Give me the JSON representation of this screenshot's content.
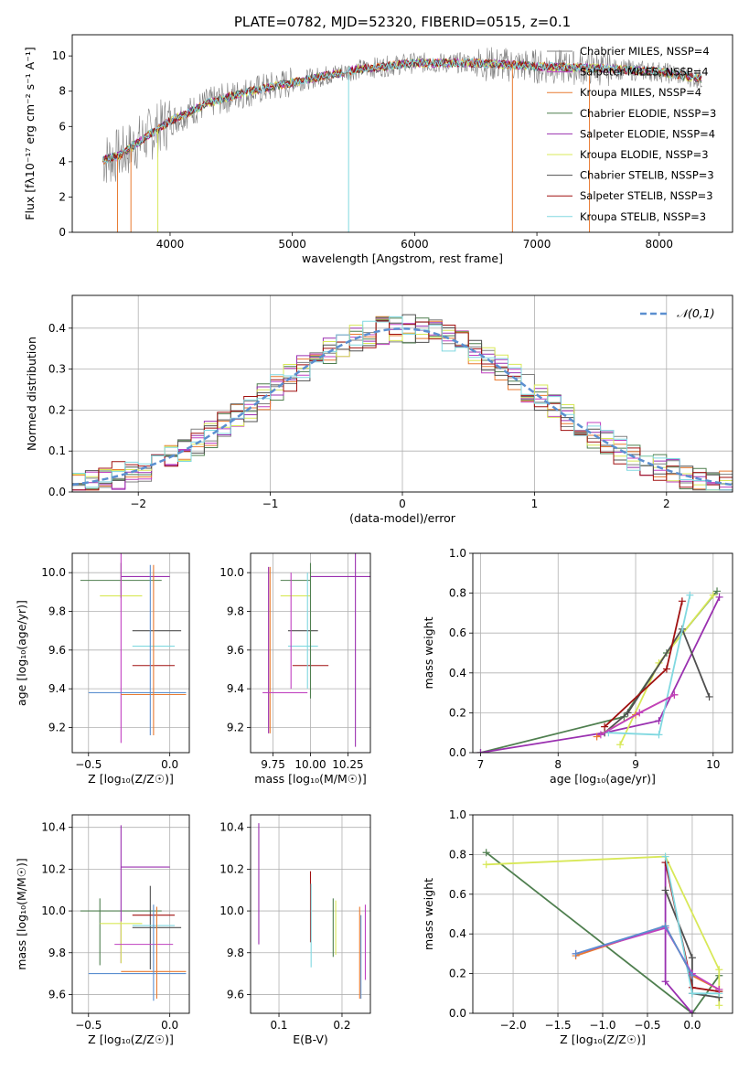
{
  "page_title": "PLATE=0782, MJD=52320, FIBERID=0515, z=0.1",
  "colors": {
    "chabrier_miles": "#808080",
    "salpeter_miles": "#c040c0",
    "kroupa_miles": "#e87a30",
    "chabrier_elodie": "#4f7f4f",
    "salpeter_elodie": "#9a30b0",
    "kroupa_elodie": "#d8e858",
    "chabrier_stelib": "#505050",
    "salpeter_stelib": "#a01010",
    "kroupa_stelib": "#80d8e0",
    "normal": "#5b8fd0"
  },
  "chart_data": [
    {
      "id": "spectrum",
      "type": "line",
      "xlabel": "wavelength [Angstrom, rest frame]",
      "ylabel": "Flux [fλ10⁻¹⁷ erg cm⁻² s⁻¹ A⁻¹]",
      "xlim": [
        3200,
        8600
      ],
      "ylim": [
        0,
        11.2
      ],
      "xticks": [
        4000,
        5000,
        6000,
        7000,
        8000
      ],
      "yticks": [
        0,
        2,
        4,
        6,
        8,
        10
      ],
      "grid": false,
      "legend_position": "right",
      "legend": [
        "Chabrier MILES, NSSP=4",
        "Salpeter MILES, NSSP=4",
        "Kroupa MILES, NSSP=4",
        "Chabrier ELODIE, NSSP=3",
        "Salpeter ELODIE, NSSP=4",
        "Kroupa ELODIE, NSSP=3",
        "Chabrier STELIB, NSSP=3",
        "Salpeter STELIB, NSSP=3",
        "Kroupa STELIB, NSSP=3"
      ],
      "continuum": {
        "x": [
          3450,
          3600,
          3800,
          4000,
          4300,
          4600,
          5000,
          5500,
          6000,
          6500,
          7000,
          7500,
          8000,
          8350
        ],
        "y": [
          4.1,
          4.4,
          5.4,
          6.3,
          7.3,
          7.9,
          8.5,
          9.2,
          9.6,
          9.6,
          9.4,
          9.3,
          9.1,
          8.7
        ]
      }
    },
    {
      "id": "residuals",
      "type": "line",
      "xlabel": "(data-model)/error",
      "ylabel": "Normed distribution",
      "xlim": [
        -2.5,
        2.5
      ],
      "ylim": [
        0,
        0.48
      ],
      "xticks": [
        -2,
        -1,
        0,
        1,
        2
      ],
      "yticks": [
        0.0,
        0.1,
        0.2,
        0.3,
        0.4
      ],
      "grid": true,
      "legend_position": "top-right",
      "legend": [
        "𝒩(0,1)"
      ]
    },
    {
      "id": "z-age",
      "type": "scatter",
      "xlabel": "Z [log₁₀(Z/Z☉)]",
      "ylabel": "age  [log₁₀(age/yr)]",
      "xlim": [
        -0.6,
        0.12
      ],
      "ylim": [
        9.07,
        10.1
      ],
      "xticks": [
        -0.5,
        0.0
      ],
      "yticks": [
        9.2,
        9.4,
        9.6,
        9.8,
        10.0
      ],
      "grid": true,
      "errorbars": [
        {
          "x": -0.3,
          "xerr": 0.25,
          "y": 9.96,
          "yerr": 0.09,
          "s": "chabrier_elodie"
        },
        {
          "x": -0.15,
          "xerr": 0.15,
          "y": 9.98,
          "yerr": 0.0,
          "s": "salpeter_elodie"
        },
        {
          "x": -0.3,
          "xerr": 0.13,
          "y": 9.88,
          "yerr": 0.0,
          "s": "kroupa_elodie"
        },
        {
          "x": -0.3,
          "xerr": 0.0,
          "y": 9.62,
          "yerr": 0.5,
          "s": "salpeter_miles"
        },
        {
          "x": -0.08,
          "xerr": 0.15,
          "y": 9.7,
          "yerr": 0.0,
          "s": "chabrier_stelib"
        },
        {
          "x": -0.1,
          "xerr": 0.13,
          "y": 9.62,
          "yerr": 0.0,
          "s": "kroupa_stelib"
        },
        {
          "x": -0.1,
          "xerr": 0.13,
          "y": 9.52,
          "yerr": 0.0,
          "s": "salpeter_stelib"
        },
        {
          "x": -0.2,
          "xerr": 0.3,
          "y": 9.38,
          "yerr": 0.0,
          "s": "normal"
        },
        {
          "x": -0.1,
          "xerr": 0.2,
          "y": 9.37,
          "yerr": 0.0,
          "s": "kroupa_miles"
        },
        {
          "x": -0.12,
          "xerr": 0.0,
          "y": 9.6,
          "yerr": 0.44,
          "s": "normal"
        },
        {
          "x": -0.1,
          "xerr": 0.0,
          "y": 9.6,
          "yerr": 0.44,
          "s": "kroupa_miles"
        }
      ]
    },
    {
      "id": "mass-age",
      "type": "scatter",
      "xlabel": "mass [log₁₀(M/M☉)]",
      "ylabel": "",
      "xlim": [
        9.6,
        10.4
      ],
      "ylim": [
        9.07,
        10.1
      ],
      "xticks": [
        9.75,
        10.0,
        10.25
      ],
      "tick_labels": [
        "9.75",
        "10.00",
        "10.25"
      ],
      "yticks": [
        9.2,
        9.4,
        9.6,
        9.8,
        10.0
      ],
      "grid": true,
      "errorbars": [
        {
          "x": 10.2,
          "xerr": 0.2,
          "y": 9.98,
          "yerr": 0.0,
          "s": "salpeter_elodie"
        },
        {
          "x": 9.72,
          "xerr": 0.0,
          "y": 9.6,
          "yerr": 0.43,
          "s": "salpeter_elodie"
        },
        {
          "x": 9.73,
          "xerr": 0.0,
          "y": 9.6,
          "yerr": 0.43,
          "s": "kroupa_miles"
        },
        {
          "x": 10.3,
          "xerr": 0.0,
          "y": 9.6,
          "yerr": 0.5,
          "s": "salpeter_elodie"
        },
        {
          "x": 9.9,
          "xerr": 0.1,
          "y": 9.96,
          "yerr": 0.0,
          "s": "chabrier_elodie"
        },
        {
          "x": 9.9,
          "xerr": 0.1,
          "y": 9.88,
          "yerr": 0.0,
          "s": "kroupa_elodie"
        },
        {
          "x": 9.95,
          "xerr": 0.1,
          "y": 9.7,
          "yerr": 0.0,
          "s": "chabrier_stelib"
        },
        {
          "x": 9.95,
          "xerr": 0.1,
          "y": 9.62,
          "yerr": 0.0,
          "s": "kroupa_stelib"
        },
        {
          "x": 10.0,
          "xerr": 0.12,
          "y": 9.52,
          "yerr": 0.0,
          "s": "salpeter_stelib"
        },
        {
          "x": 9.83,
          "xerr": 0.15,
          "y": 9.38,
          "yerr": 0.0,
          "s": "salpeter_miles"
        },
        {
          "x": 9.87,
          "xerr": 0.0,
          "y": 9.7,
          "yerr": 0.3,
          "s": "salpeter_miles"
        },
        {
          "x": 9.98,
          "xerr": 0.0,
          "y": 9.7,
          "yerr": 0.3,
          "s": "kroupa_stelib"
        },
        {
          "x": 10.0,
          "xerr": 0.0,
          "y": 9.7,
          "yerr": 0.35,
          "s": "chabrier_elodie"
        }
      ]
    },
    {
      "id": "age-weight",
      "type": "line",
      "xlabel": "age  [log₁₀(age/yr)]",
      "ylabel": "mass weight",
      "xlim": [
        6.9,
        10.25
      ],
      "ylim": [
        0,
        1.0
      ],
      "xticks": [
        7,
        8,
        9,
        10
      ],
      "yticks": [
        0.0,
        0.2,
        0.4,
        0.6,
        0.8,
        1.0
      ],
      "grid": true,
      "series": [
        {
          "s": "chabrier_elodie",
          "x": [
            7.0,
            8.85,
            9.4,
            10.05
          ],
          "y": [
            0.0,
            0.18,
            0.5,
            0.81
          ]
        },
        {
          "s": "salpeter_elodie",
          "x": [
            7.0,
            8.6,
            9.3,
            10.08
          ],
          "y": [
            0.0,
            0.1,
            0.16,
            0.78
          ]
        },
        {
          "s": "kroupa_elodie",
          "x": [
            8.8,
            9.3,
            10.0
          ],
          "y": [
            0.04,
            0.45,
            0.79
          ]
        },
        {
          "s": "chabrier_stelib",
          "x": [
            8.6,
            8.9,
            9.6,
            9.95
          ],
          "y": [
            0.1,
            0.2,
            0.62,
            0.28
          ]
        },
        {
          "s": "salpeter_stelib",
          "x": [
            8.6,
            9.4,
            9.6
          ],
          "y": [
            0.13,
            0.42,
            0.76
          ]
        },
        {
          "s": "kroupa_stelib",
          "x": [
            8.65,
            9.3,
            9.7
          ],
          "y": [
            0.1,
            0.09,
            0.79
          ]
        },
        {
          "s": "kroupa_miles",
          "x": [
            8.5,
            9.0,
            9.5
          ],
          "y": [
            0.08,
            0.19,
            0.29
          ]
        },
        {
          "s": "salpeter_miles",
          "x": [
            8.55,
            9.05,
            9.5
          ],
          "y": [
            0.09,
            0.2,
            0.29
          ]
        }
      ]
    },
    {
      "id": "z-mass",
      "type": "scatter",
      "xlabel": "Z [log₁₀(Z/Z☉)]",
      "ylabel": "mass [log₁₀(M/M☉)]",
      "xlim": [
        -0.6,
        0.12
      ],
      "ylim": [
        9.51,
        10.46
      ],
      "xticks": [
        -0.5,
        0.0
      ],
      "yticks": [
        9.6,
        9.8,
        10.0,
        10.2,
        10.4
      ],
      "grid": true,
      "errorbars": [
        {
          "x": -0.3,
          "xerr": 0.25,
          "y": 10.0,
          "yerr": 0.0,
          "s": "chabrier_elodie"
        },
        {
          "x": -0.43,
          "xerr": 0.0,
          "y": 9.9,
          "yerr": 0.16,
          "s": "chabrier_elodie"
        },
        {
          "x": -0.15,
          "xerr": 0.15,
          "y": 10.21,
          "yerr": 0.0,
          "s": "salpeter_elodie"
        },
        {
          "x": -0.3,
          "xerr": 0.0,
          "y": 10.08,
          "yerr": 0.33,
          "s": "salpeter_elodie"
        },
        {
          "x": -0.3,
          "xerr": 0.13,
          "y": 9.94,
          "yerr": 0.0,
          "s": "kroupa_elodie"
        },
        {
          "x": -0.3,
          "xerr": 0.0,
          "y": 9.85,
          "yerr": 0.1,
          "s": "kroupa_elodie"
        },
        {
          "x": -0.08,
          "xerr": 0.15,
          "y": 9.92,
          "yerr": 0.0,
          "s": "chabrier_stelib"
        },
        {
          "x": -0.12,
          "xerr": 0.0,
          "y": 9.92,
          "yerr": 0.2,
          "s": "chabrier_stelib"
        },
        {
          "x": -0.1,
          "xerr": 0.13,
          "y": 9.93,
          "yerr": 0.0,
          "s": "kroupa_stelib"
        },
        {
          "x": -0.1,
          "xerr": 0.13,
          "y": 9.98,
          "yerr": 0.0,
          "s": "salpeter_stelib"
        },
        {
          "x": -0.16,
          "xerr": 0.18,
          "y": 9.84,
          "yerr": 0.0,
          "s": "salpeter_miles"
        },
        {
          "x": -0.2,
          "xerr": 0.3,
          "y": 9.7,
          "yerr": 0.0,
          "s": "normal"
        },
        {
          "x": -0.1,
          "xerr": 0.2,
          "y": 9.71,
          "yerr": 0.0,
          "s": "kroupa_miles"
        },
        {
          "x": -0.1,
          "xerr": 0.0,
          "y": 9.8,
          "yerr": 0.23,
          "s": "normal"
        },
        {
          "x": -0.08,
          "xerr": 0.0,
          "y": 9.8,
          "yerr": 0.22,
          "s": "kroupa_miles"
        }
      ]
    },
    {
      "id": "ebv-mass",
      "type": "scatter",
      "xlabel": "E(B-V)",
      "ylabel": "",
      "xlim": [
        0.055,
        0.245
      ],
      "ylim": [
        9.51,
        10.46
      ],
      "xticks": [
        0.1,
        0.2
      ],
      "yticks": [
        9.6,
        9.8,
        10.0,
        10.2,
        10.4
      ],
      "grid": true,
      "errorbars": [
        {
          "x": 0.068,
          "xerr": 0.0,
          "y": 10.13,
          "yerr": 0.29,
          "s": "salpeter_elodie"
        },
        {
          "x": 0.15,
          "xerr": 0.0,
          "y": 10.02,
          "yerr": 0.17,
          "s": "salpeter_stelib"
        },
        {
          "x": 0.151,
          "xerr": 0.0,
          "y": 9.93,
          "yerr": 0.2,
          "s": "kroupa_stelib"
        },
        {
          "x": 0.186,
          "xerr": 0.0,
          "y": 9.92,
          "yerr": 0.14,
          "s": "chabrier_elodie"
        },
        {
          "x": 0.19,
          "xerr": 0.0,
          "y": 9.92,
          "yerr": 0.13,
          "s": "kroupa_elodie"
        },
        {
          "x": 0.228,
          "xerr": 0.0,
          "y": 9.8,
          "yerr": 0.22,
          "s": "kroupa_miles"
        },
        {
          "x": 0.23,
          "xerr": 0.0,
          "y": 9.78,
          "yerr": 0.2,
          "s": "normal"
        },
        {
          "x": 0.237,
          "xerr": 0.0,
          "y": 9.85,
          "yerr": 0.18,
          "s": "salpeter_miles"
        }
      ]
    },
    {
      "id": "z-weight",
      "type": "line",
      "xlabel": "Z [log₁₀(Z/Z☉)]",
      "ylabel": "mass weight",
      "xlim": [
        -2.45,
        0.45
      ],
      "ylim": [
        0,
        1.0
      ],
      "xticks": [
        -2.0,
        -1.5,
        -1.0,
        -0.5,
        0.0
      ],
      "yticks": [
        0.0,
        0.2,
        0.4,
        0.6,
        0.8,
        1.0
      ],
      "grid": true,
      "series": [
        {
          "s": "chabrier_elodie",
          "x": [
            -2.3,
            0.0,
            0.3
          ],
          "y": [
            0.81,
            0.0,
            0.19
          ]
        },
        {
          "s": "kroupa_elodie",
          "x": [
            -2.3,
            -0.3,
            0.3,
            0.3
          ],
          "y": [
            0.75,
            0.79,
            0.22,
            0.04
          ]
        },
        {
          "s": "salpeter_elodie",
          "x": [
            -0.3,
            -0.3,
            0.0
          ],
          "y": [
            0.76,
            0.16,
            0.0
          ]
        },
        {
          "s": "chabrier_stelib",
          "x": [
            -0.3,
            0.0,
            0.0,
            0.3
          ],
          "y": [
            0.62,
            0.28,
            0.1,
            0.08
          ]
        },
        {
          "s": "salpeter_stelib",
          "x": [
            -0.3,
            0.0,
            0.3
          ],
          "y": [
            0.76,
            0.13,
            0.11
          ]
        },
        {
          "s": "kroupa_stelib",
          "x": [
            -0.3,
            0.0,
            0.3
          ],
          "y": [
            0.79,
            0.1,
            0.1
          ]
        },
        {
          "s": "kroupa_miles",
          "x": [
            -1.3,
            -0.3,
            0.0,
            0.3
          ],
          "y": [
            0.29,
            0.44,
            0.19,
            0.12
          ]
        },
        {
          "s": "salpeter_miles",
          "x": [
            -1.3,
            -0.3,
            0.0,
            0.3
          ],
          "y": [
            0.3,
            0.43,
            0.2,
            0.12
          ]
        },
        {
          "s": "normal",
          "x": [
            -1.3,
            -0.3,
            0.0
          ],
          "y": [
            0.3,
            0.44,
            0.19
          ]
        }
      ]
    }
  ]
}
